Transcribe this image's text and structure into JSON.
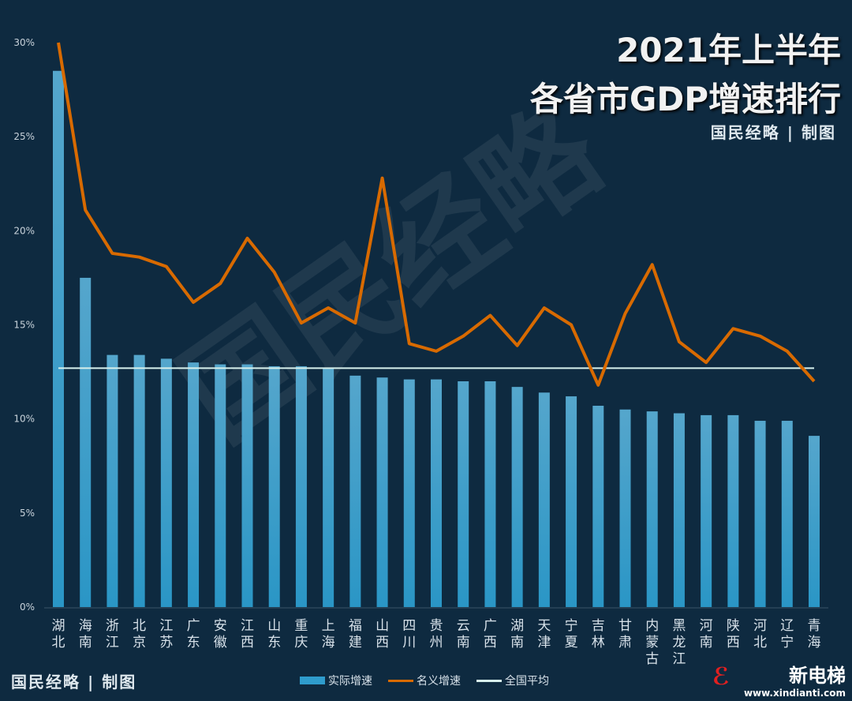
{
  "title_line1": "2021年上半年",
  "title_line2": "各省市GDP增速排行",
  "credit": "国民经略 | 制图",
  "watermark": "国民经略",
  "brand": {
    "name": "新电梯",
    "url": "www.xindianti.com"
  },
  "colors": {
    "background": "#0e2a40",
    "bar": "#2f9ccc",
    "nominal": "#d86a00",
    "average": "#d7f0ec"
  },
  "chart_data": {
    "type": "bar+line",
    "categories": [
      "湖北",
      "海南",
      "浙江",
      "北京",
      "江苏",
      "广东",
      "安徽",
      "江西",
      "山东",
      "重庆",
      "上海",
      "福建",
      "山西",
      "四川",
      "贵州",
      "云南",
      "广西",
      "湖南",
      "天津",
      "宁夏",
      "吉林",
      "甘肃",
      "内蒙古",
      "黑龙江",
      "河南",
      "陕西",
      "河北",
      "辽宁",
      "青海"
    ],
    "series": [
      {
        "name": "实际增速",
        "type": "bar",
        "values": [
          28.5,
          17.5,
          13.4,
          13.4,
          13.2,
          13.0,
          12.9,
          12.9,
          12.8,
          12.8,
          12.7,
          12.3,
          12.2,
          12.1,
          12.1,
          12.0,
          12.0,
          11.7,
          11.4,
          11.2,
          10.7,
          10.5,
          10.4,
          10.3,
          10.2,
          10.2,
          9.9,
          9.9,
          9.1
        ]
      },
      {
        "name": "名义增速",
        "type": "line",
        "values": [
          30.0,
          21.1,
          18.8,
          18.6,
          18.1,
          16.2,
          17.2,
          19.6,
          17.8,
          15.1,
          15.9,
          15.1,
          22.8,
          14.0,
          13.6,
          14.4,
          15.5,
          13.9,
          15.9,
          15.0,
          11.8,
          15.6,
          18.2,
          14.1,
          13.0,
          14.8,
          14.4,
          13.6,
          12.0
        ]
      },
      {
        "name": "全国平均",
        "type": "line",
        "value": 12.7
      }
    ],
    "yticks": [
      "0%",
      "5%",
      "10%",
      "15%",
      "20%",
      "25%",
      "30%"
    ],
    "ylim": [
      0,
      30
    ],
    "grid": false,
    "legend": "bottom"
  }
}
